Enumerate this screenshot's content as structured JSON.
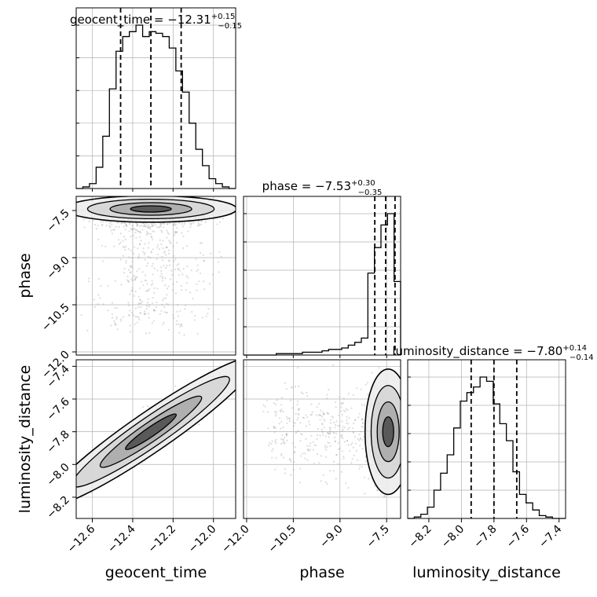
{
  "chart_data": {
    "type": "corner",
    "parameters": [
      "geocent_time",
      "phase",
      "luminosity_distance"
    ],
    "titles": [
      {
        "text": "geocent_time = −12.31",
        "sup": "+0.15",
        "sub": "−0.15"
      },
      {
        "text": "phase = −7.53",
        "sup": "+0.30",
        "sub": "−0.35"
      },
      {
        "text": "luminosity_distance = −7.80",
        "sup": "+0.14",
        "sub": "−0.14"
      }
    ],
    "ranges": {
      "geocent_time": [
        -12.68,
        -11.89
      ],
      "phase": [
        -12.1,
        -7.05
      ],
      "luminosity_distance": [
        -8.33,
        -7.36
      ]
    },
    "ticks": {
      "geocent_time": {
        "values": [
          -12.6,
          -12.4,
          -12.2,
          -12.0
        ],
        "labels": [
          "−12.6",
          "−12.4",
          "−12.2",
          "−12.0"
        ]
      },
      "phase": {
        "values": [
          -12.0,
          -10.5,
          -9.0,
          -7.5
        ],
        "labels": [
          "−12.0",
          "−10.5",
          "−9.0",
          "−7.5"
        ]
      },
      "luminosity_distance": {
        "values": [
          -8.2,
          -8.0,
          -7.8,
          -7.6,
          -7.4
        ],
        "labels": [
          "−8.2",
          "−8.0",
          "−7.8",
          "−7.6",
          "−7.4"
        ]
      }
    },
    "quantiles": {
      "geocent_time": [
        -12.46,
        -12.31,
        -12.16
      ],
      "phase": [
        -7.88,
        -7.53,
        -7.23
      ],
      "luminosity_distance": [
        -7.94,
        -7.8,
        -7.66
      ]
    },
    "hist1d": {
      "geocent_time": [
        0.0,
        0.01,
        0.03,
        0.13,
        0.32,
        0.61,
        0.84,
        0.93,
        0.96,
        1.0,
        0.93,
        0.96,
        0.95,
        0.93,
        0.86,
        0.72,
        0.59,
        0.4,
        0.24,
        0.14,
        0.06,
        0.03,
        0.01,
        0.0
      ],
      "phase": [
        0.0,
        0.0,
        0.0,
        0.0,
        0.0,
        0.01,
        0.01,
        0.01,
        0.01,
        0.02,
        0.02,
        0.02,
        0.03,
        0.04,
        0.04,
        0.05,
        0.07,
        0.09,
        0.12,
        0.58,
        0.76,
        0.92,
        1.0,
        0.52
      ],
      "luminosity_distance": [
        0.0,
        0.01,
        0.03,
        0.08,
        0.2,
        0.32,
        0.45,
        0.64,
        0.83,
        0.89,
        0.93,
        1.0,
        0.97,
        0.81,
        0.67,
        0.55,
        0.33,
        0.17,
        0.11,
        0.06,
        0.02,
        0.01,
        0.0,
        0.0
      ]
    },
    "grid": true,
    "colors": {
      "line": "#000000",
      "points": "#9e9e9e",
      "grid": "#b0b0b0"
    }
  }
}
